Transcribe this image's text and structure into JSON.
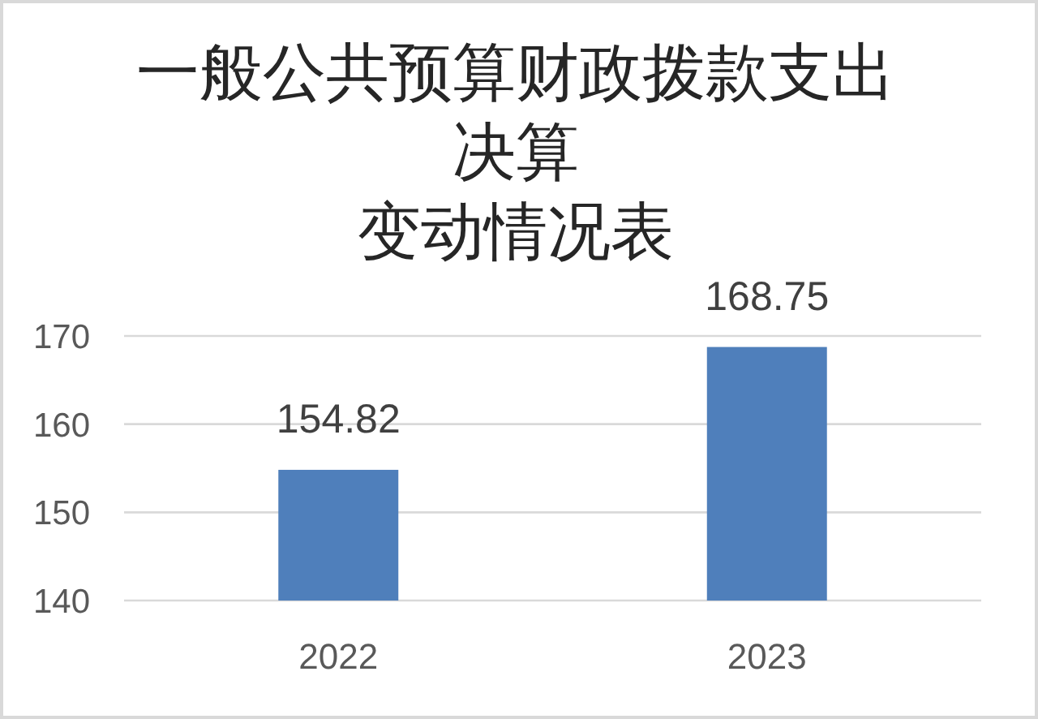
{
  "chart_data": {
    "type": "bar",
    "title": "一般公共预算财政拨款支出决算变动情况表",
    "categories": [
      "2022",
      "2023"
    ],
    "values": [
      154.82,
      168.75
    ],
    "color": "#4f7fbb",
    "ylim": [
      140,
      170
    ],
    "yticks": [
      140,
      150,
      160,
      170
    ],
    "grid": true,
    "data_labels": true
  }
}
